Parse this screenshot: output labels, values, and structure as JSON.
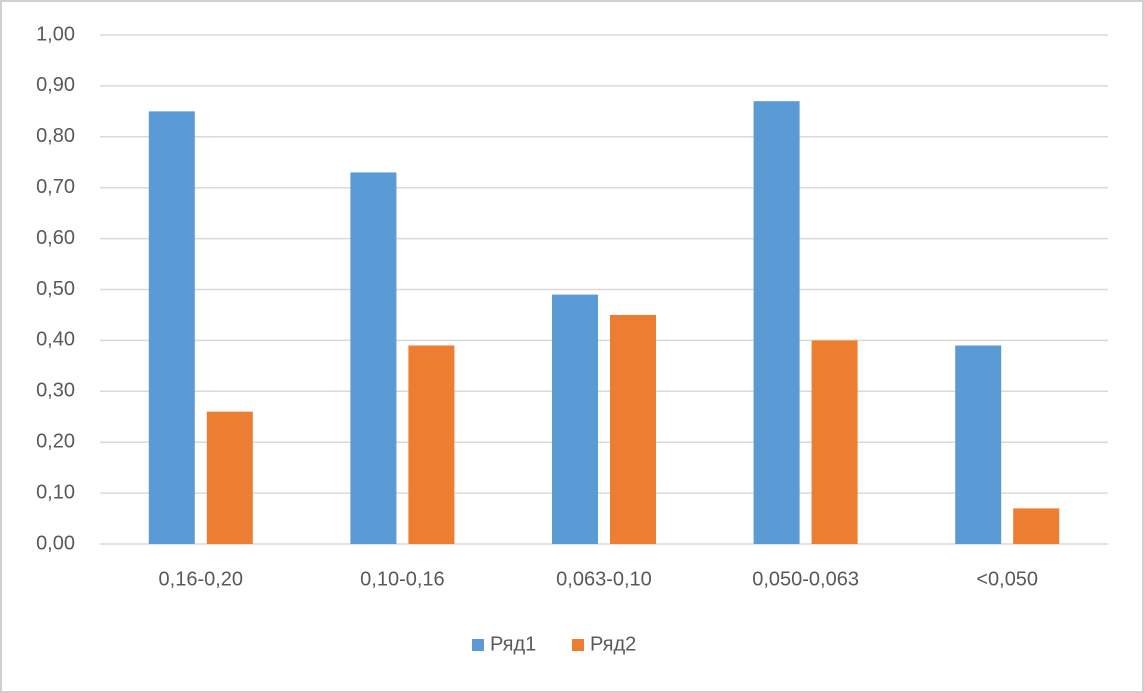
{
  "chart_data": {
    "type": "bar",
    "categories": [
      "0,16-0,20",
      "0,10-0,16",
      "0,063-0,10",
      "0,050-0,063",
      "<0,050"
    ],
    "series": [
      {
        "name": "Ряд1",
        "color": "#5b9bd5",
        "values": [
          0.85,
          0.73,
          0.49,
          0.87,
          0.39
        ]
      },
      {
        "name": "Ряд2",
        "color": "#ed7d31",
        "values": [
          0.26,
          0.39,
          0.45,
          0.4,
          0.07
        ]
      }
    ],
    "ylim": [
      0,
      1
    ],
    "yticks": [
      {
        "value": 0,
        "label": "0,00"
      },
      {
        "value": 0.1,
        "label": "0,10"
      },
      {
        "value": 0.2,
        "label": "0,20"
      },
      {
        "value": 0.3,
        "label": "0,30"
      },
      {
        "value": 0.4,
        "label": "0,40"
      },
      {
        "value": 0.5,
        "label": "0,50"
      },
      {
        "value": 0.6,
        "label": "0,60"
      },
      {
        "value": 0.7,
        "label": "0,70"
      },
      {
        "value": 0.8,
        "label": "0,80"
      },
      {
        "value": 0.9,
        "label": "0,90"
      },
      {
        "value": 1,
        "label": "1,00"
      }
    ],
    "grid": true,
    "legend": "bottom"
  }
}
